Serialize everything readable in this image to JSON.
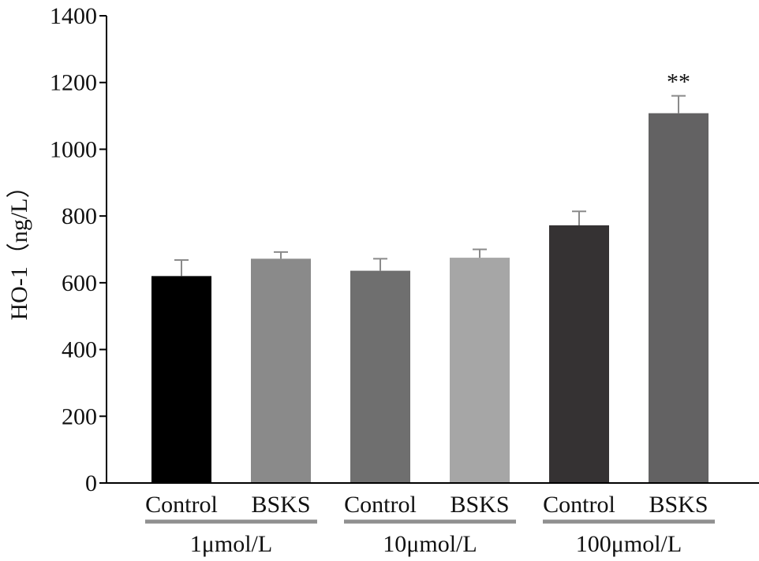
{
  "chart_data": {
    "type": "bar",
    "ylabel": "HO-1（ng/L）",
    "ylim": [
      0,
      1400
    ],
    "yticks": [
      0,
      200,
      400,
      600,
      800,
      1000,
      1200,
      1400
    ],
    "grid": false,
    "groups": [
      {
        "label": "1μmol/L",
        "bars": [
          {
            "category": "Control",
            "value": 620,
            "error": 48,
            "color": "#000000"
          },
          {
            "category": "BSKS",
            "value": 672,
            "error": 20,
            "color": "#8a8a8a"
          }
        ]
      },
      {
        "label": "10μmol/L",
        "bars": [
          {
            "category": "Control",
            "value": 636,
            "error": 36,
            "color": "#6f6f6f"
          },
          {
            "category": "BSKS",
            "value": 675,
            "error": 25,
            "color": "#a6a6a6"
          }
        ]
      },
      {
        "label": "100μmol/L",
        "bars": [
          {
            "category": "Control",
            "value": 772,
            "error": 42,
            "color": "#353233"
          },
          {
            "category": "BSKS",
            "value": 1108,
            "error": 52,
            "color": "#636263",
            "annotation": "**"
          }
        ]
      }
    ],
    "axis_color": "#000000",
    "error_bar_color": "#8a8a8a",
    "group_underline_color": "#8f8f8f"
  }
}
